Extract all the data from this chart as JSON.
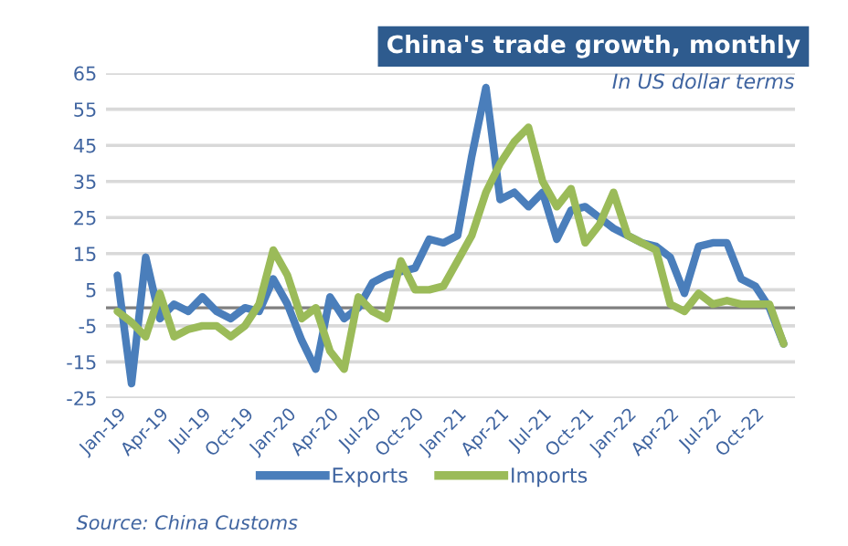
{
  "chart_data": {
    "type": "line",
    "title": "China's trade growth, monthly",
    "subtitle": "In US dollar terms",
    "categories": [
      "Jan-19",
      null,
      null,
      "Apr-19",
      null,
      null,
      "Jul-19",
      null,
      null,
      "Oct-19",
      null,
      null,
      "Jan-20",
      null,
      null,
      "Apr-20",
      null,
      null,
      "Jul-20",
      null,
      null,
      "Oct-20",
      null,
      null,
      "Jan-21",
      null,
      null,
      "Apr-21",
      null,
      null,
      "Jul-21",
      null,
      null,
      "Oct-21",
      null,
      null,
      "Jan-22",
      null,
      null,
      "Apr-22",
      null,
      null,
      "Jul-22",
      null,
      null,
      "Oct-22",
      null,
      null
    ],
    "series": [
      {
        "name": "Exports",
        "color": "#4a7ebb",
        "values": [
          9,
          -21,
          14,
          -3,
          1,
          -1,
          3,
          -1,
          -3,
          0,
          -1,
          8,
          1,
          -9,
          -17,
          3,
          -3,
          0,
          7,
          9,
          10,
          11,
          19,
          18,
          20,
          42,
          61,
          30,
          32,
          28,
          32,
          19,
          27,
          28,
          25,
          22,
          20,
          18,
          17,
          14,
          4,
          17,
          18,
          18,
          8,
          6,
          0,
          -10
        ]
      },
      {
        "name": "Imports",
        "color": "#9bbb59",
        "values": [
          -1,
          -4,
          -8,
          4,
          -8,
          -6,
          -5,
          -5,
          -8,
          -5,
          1,
          16,
          9,
          -3,
          0,
          -12,
          -17,
          3,
          -1,
          -3,
          13,
          5,
          5,
          6,
          13,
          20,
          32,
          40,
          46,
          50,
          35,
          28,
          33,
          18,
          23,
          32,
          20,
          18,
          16,
          1,
          -1,
          4,
          1,
          2,
          1,
          1,
          1,
          -10
        ]
      }
    ],
    "ylim": [
      -25,
      65
    ],
    "yticks": [
      -25,
      -15,
      -5,
      5,
      15,
      25,
      35,
      45,
      55,
      65
    ],
    "grid": "y",
    "legend": "bottom",
    "ref_lines": [
      {
        "axis": "y",
        "value": 0,
        "color": "#808080"
      }
    ],
    "line_style": "solid",
    "marker": "none",
    "annotations": [
      "Source: China Customs"
    ]
  }
}
